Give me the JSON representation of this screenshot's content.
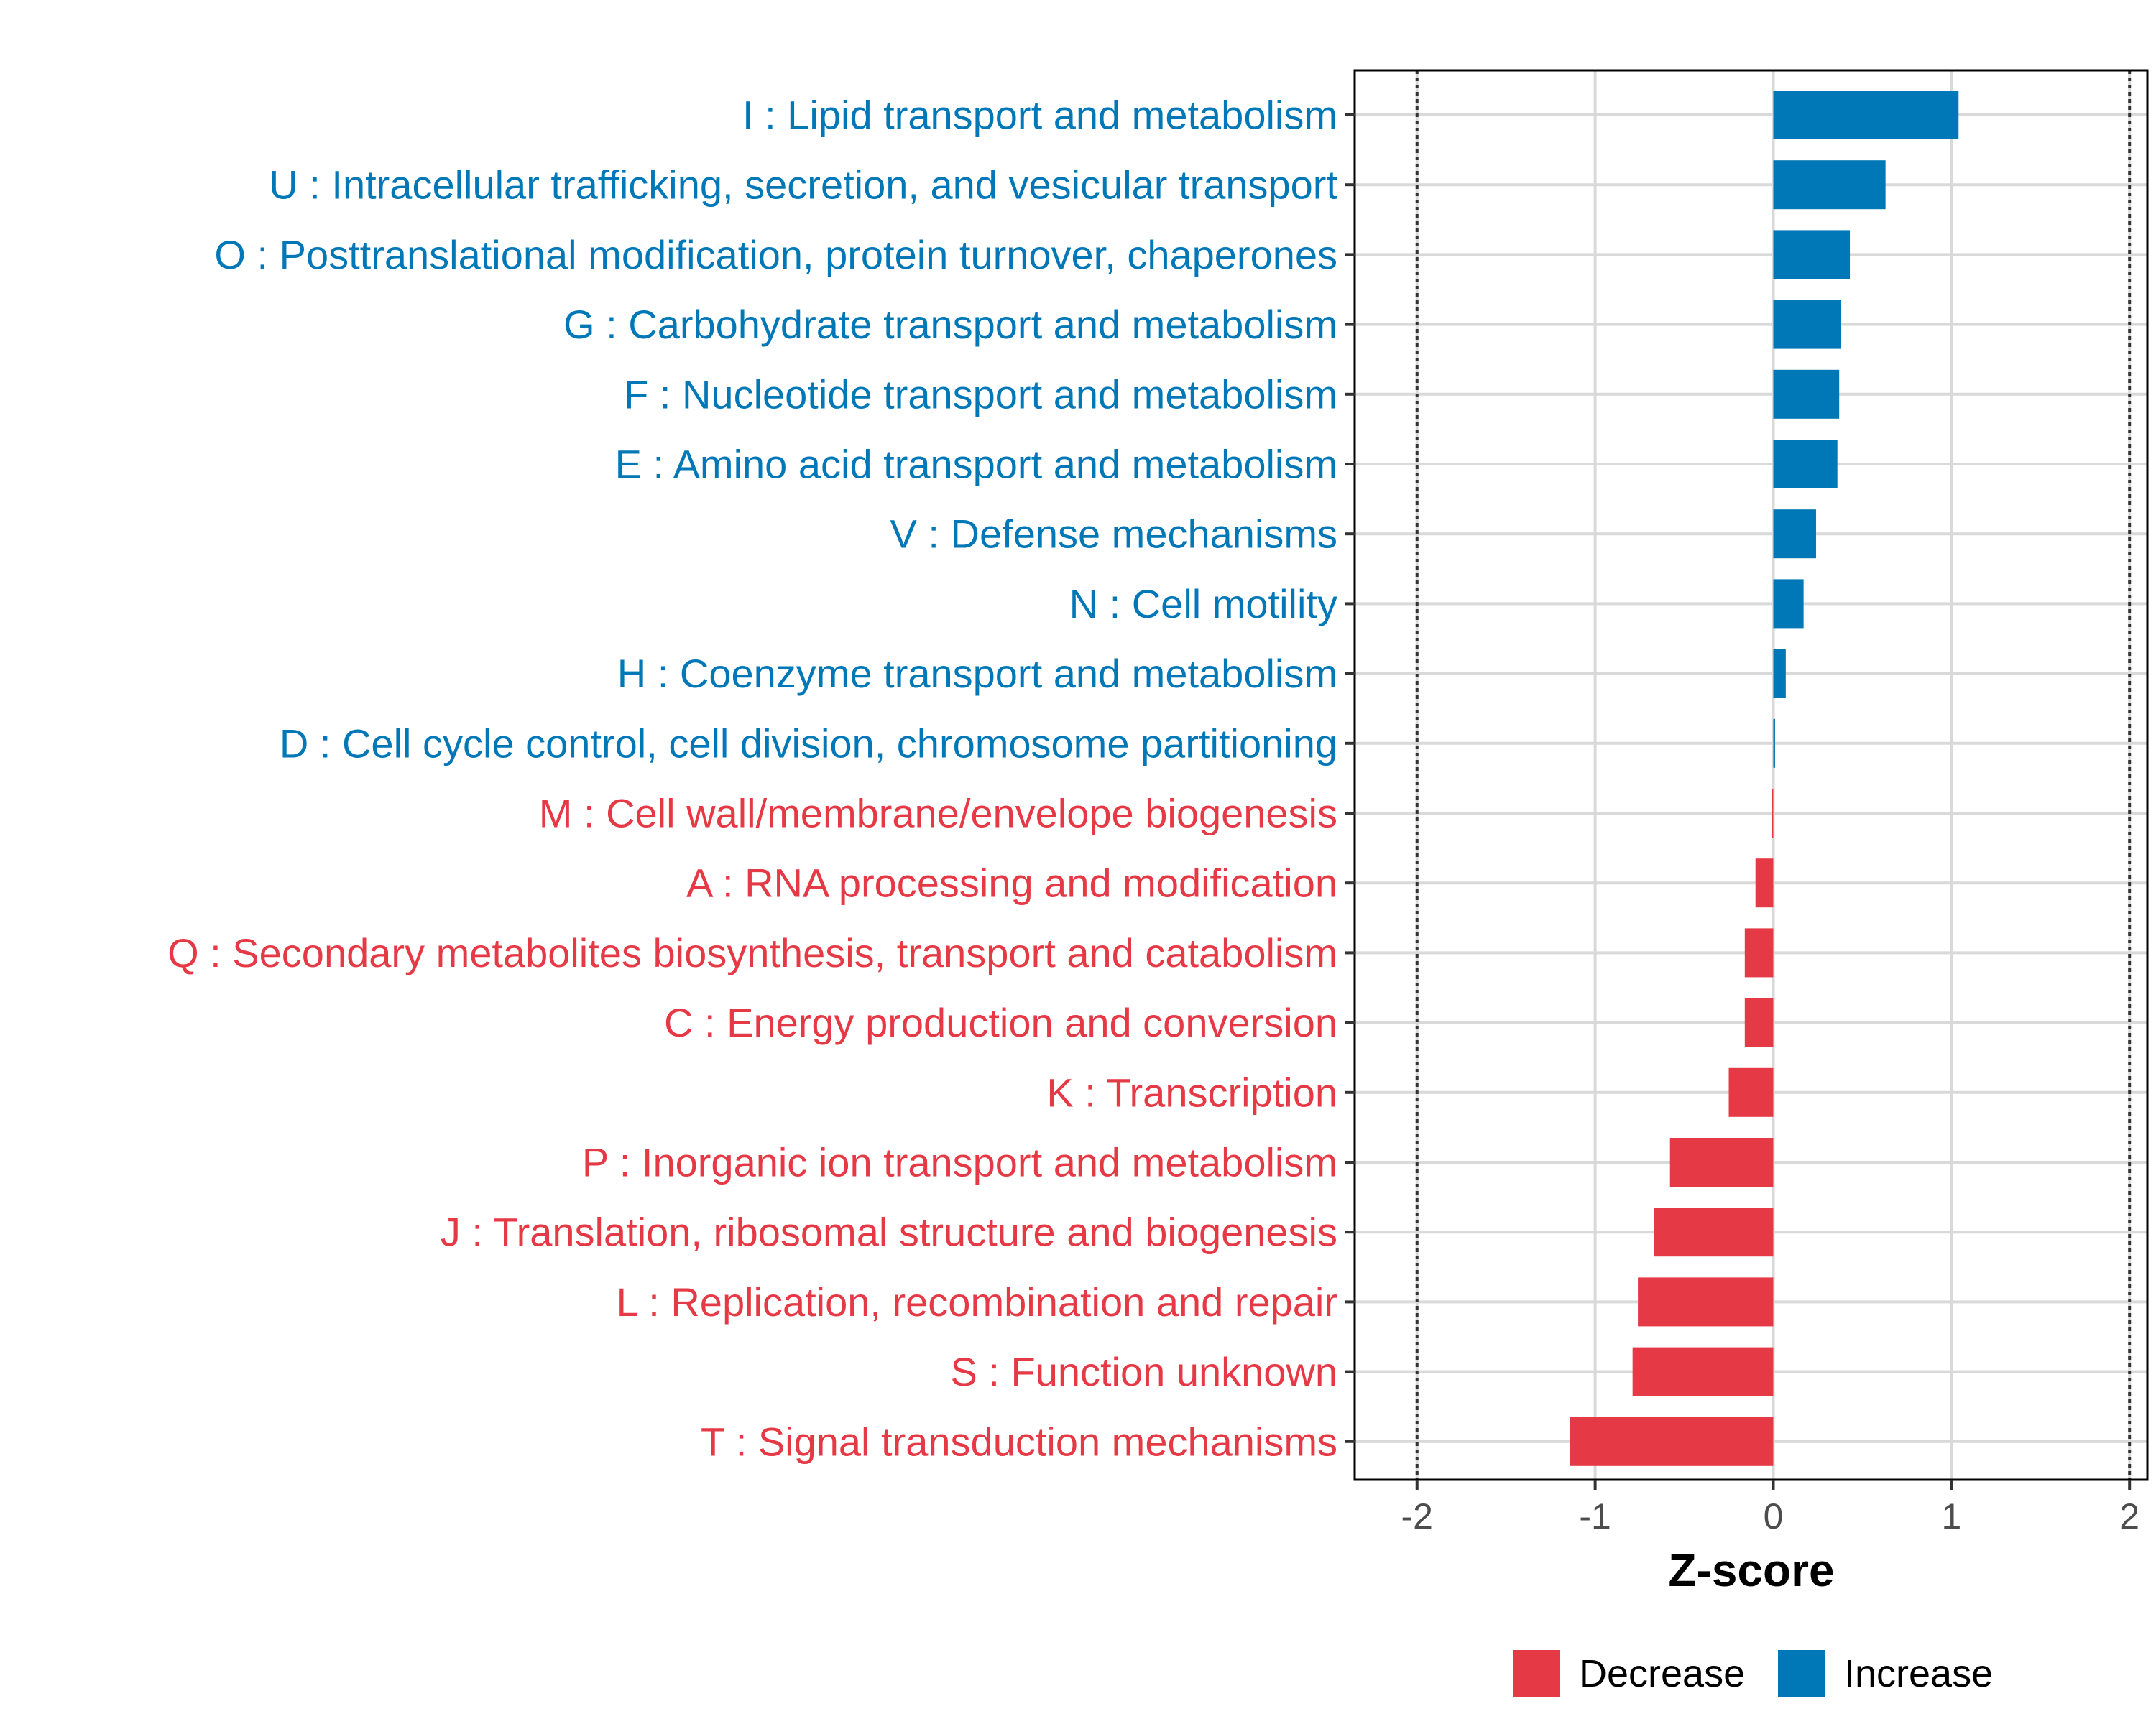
{
  "chart_data": {
    "type": "bar",
    "orientation": "horizontal",
    "xlabel": "Z-score",
    "xlim": [
      -2.35,
      2.1
    ],
    "xticks": [
      -2,
      -1,
      0,
      1,
      2
    ],
    "xtick_labels": [
      "-2",
      "-1",
      "0",
      "1",
      "2"
    ],
    "reference_lines": [
      -2,
      2
    ],
    "grid": true,
    "legend_position": "bottom",
    "categories": [
      "I : Lipid transport and metabolism",
      "U : Intracellular trafficking, secretion, and vesicular transport",
      "O : Posttranslational modification, protein turnover, chaperones",
      "G : Carbohydrate transport and metabolism",
      "F : Nucleotide transport and metabolism",
      "E : Amino acid transport and metabolism",
      "V : Defense mechanisms",
      "N : Cell motility",
      "H : Coenzyme transport and metabolism",
      "D : Cell cycle control, cell division, chromosome partitioning",
      "M : Cell wall/membrane/envelope biogenesis",
      "A : RNA processing and modification",
      "Q : Secondary metabolites biosynthesis, transport and catabolism",
      "C : Energy production and conversion",
      "K : Transcription",
      "P : Inorganic ion transport and metabolism",
      "J : Translation, ribosomal structure and biogenesis",
      "L : Replication, recombination and repair",
      "S : Function unknown",
      "T : Signal transduction mechanisms"
    ],
    "values": [
      1.04,
      0.63,
      0.43,
      0.38,
      0.37,
      0.36,
      0.24,
      0.17,
      0.07,
      0.01,
      -0.01,
      -0.1,
      -0.16,
      -0.16,
      -0.25,
      -0.58,
      -0.67,
      -0.76,
      -0.79,
      -1.14
    ],
    "groups": [
      "Increase",
      "Increase",
      "Increase",
      "Increase",
      "Increase",
      "Increase",
      "Increase",
      "Increase",
      "Increase",
      "Increase",
      "Decrease",
      "Decrease",
      "Decrease",
      "Decrease",
      "Decrease",
      "Decrease",
      "Decrease",
      "Decrease",
      "Decrease",
      "Decrease"
    ],
    "legend": [
      {
        "name": "Decrease",
        "color": "#e63946"
      },
      {
        "name": "Increase",
        "color": "#0077b6"
      }
    ]
  }
}
